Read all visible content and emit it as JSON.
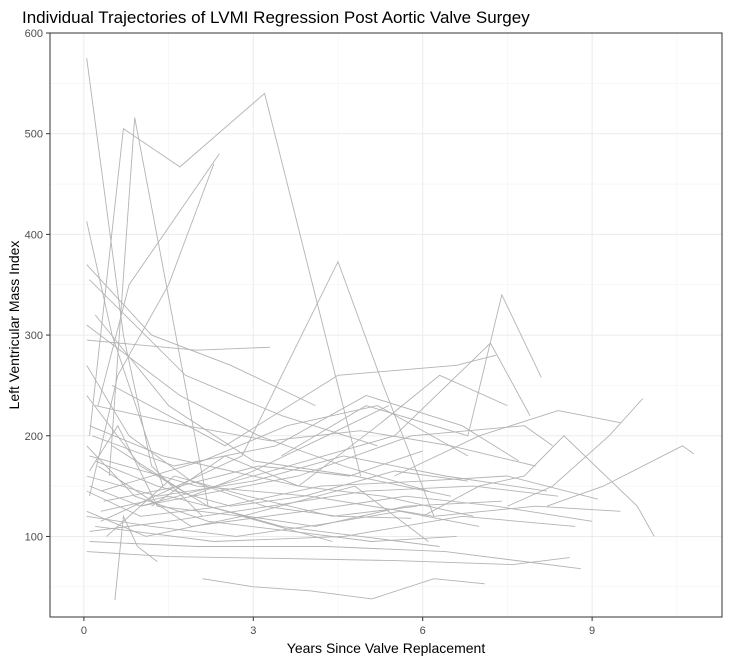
{
  "chart_data": {
    "type": "line",
    "title": "Individual Trajectories of LVMI Regression Post Aortic Valve Surgey",
    "xlabel": "Years Since Valve Replacement",
    "ylabel": "Left Ventricular Mass Index",
    "xlim": [
      -0.6,
      11.3
    ],
    "ylim": [
      20,
      600
    ],
    "xticks": [
      0,
      3,
      6,
      9
    ],
    "xtick_labels": [
      "0",
      "3",
      "6",
      "9"
    ],
    "yticks": [
      100,
      200,
      300,
      400,
      500,
      600
    ],
    "ytick_labels": [
      "100",
      "200",
      "300",
      "400",
      "500",
      "600"
    ],
    "grid": true,
    "legend": "none",
    "line_color": "#b3b3b3",
    "series": [
      {
        "x": [
          0.05,
          0.7,
          1.2,
          2.1
        ],
        "y": [
          575,
          300,
          170,
          120
        ]
      },
      {
        "x": [
          0.1,
          0.7,
          1.7,
          3.2,
          4.9
        ],
        "y": [
          200,
          505,
          467,
          540,
          160
        ]
      },
      {
        "x": [
          0.45,
          0.9,
          2.2,
          3.5
        ],
        "y": [
          160,
          516,
          130,
          110
        ]
      },
      {
        "x": [
          0.05,
          0.5,
          1.4
        ],
        "y": [
          413,
          300,
          150
        ]
      },
      {
        "x": [
          0.25,
          0.8,
          2.4
        ],
        "y": [
          230,
          350,
          480
        ]
      },
      {
        "x": [
          0.1,
          0.6,
          1.5,
          2.3
        ],
        "y": [
          140,
          260,
          350,
          470
        ]
      },
      {
        "x": [
          0.3,
          2.8,
          4.5,
          5.3,
          6.2
        ],
        "y": [
          115,
          180,
          373,
          250,
          120
        ]
      },
      {
        "x": [
          3.5,
          5.0,
          6.8,
          7.4,
          8.1
        ],
        "y": [
          180,
          230,
          200,
          340,
          258
        ]
      },
      {
        "x": [
          0.05,
          2.0,
          3.3
        ],
        "y": [
          295,
          285,
          288
        ]
      },
      {
        "x": [
          0.05,
          1.2,
          2.6,
          4.1
        ],
        "y": [
          370,
          300,
          270,
          230
        ]
      },
      {
        "x": [
          0.1,
          1.8,
          3.5,
          5.2
        ],
        "y": [
          355,
          260,
          220,
          190
        ]
      },
      {
        "x": [
          0.2,
          1.5,
          3.0,
          4.8,
          6.5
        ],
        "y": [
          320,
          230,
          175,
          160,
          140
        ]
      },
      {
        "x": [
          0.5,
          2.5,
          4.5,
          6.6,
          7.3
        ],
        "y": [
          250,
          190,
          260,
          270,
          280
        ]
      },
      {
        "x": [
          1.0,
          3.0,
          5.5,
          7.2,
          7.9
        ],
        "y": [
          130,
          160,
          200,
          292,
          220
        ]
      },
      {
        "x": [
          6.0,
          7.0,
          7.8,
          8.5,
          9.8,
          10.1
        ],
        "y": [
          120,
          150,
          160,
          200,
          130,
          100
        ]
      },
      {
        "x": [
          8.2,
          9.2,
          10.6,
          10.8
        ],
        "y": [
          130,
          150,
          190,
          182
        ]
      },
      {
        "x": [
          5.5,
          7.0,
          8.4,
          9.5
        ],
        "y": [
          160,
          200,
          225,
          213
        ]
      },
      {
        "x": [
          7.5,
          8.3,
          9.3,
          9.9
        ],
        "y": [
          130,
          150,
          200,
          237
        ]
      },
      {
        "x": [
          0.05,
          1.0,
          2.5,
          4.2,
          6.0,
          7.5,
          9.1
        ],
        "y": [
          145,
          120,
          130,
          150,
          155,
          160,
          137
        ]
      },
      {
        "x": [
          0.1,
          2.0,
          4.0,
          6.2,
          8.0,
          9.5
        ],
        "y": [
          180,
          150,
          140,
          120,
          130,
          125
        ]
      },
      {
        "x": [
          0.2,
          2.3,
          4.6,
          6.7,
          8.7
        ],
        "y": [
          110,
          95,
          100,
          120,
          110
        ]
      },
      {
        "x": [
          0.05,
          1.5,
          3.6,
          5.5,
          7.6,
          8.6
        ],
        "y": [
          85,
          80,
          78,
          76,
          72,
          79
        ]
      },
      {
        "x": [
          0.1,
          2.0,
          4.3,
          6.4,
          8.8
        ],
        "y": [
          95,
          90,
          90,
          85,
          68
        ]
      },
      {
        "x": [
          2.1,
          3.0,
          4.0,
          5.1,
          6.2,
          7.1
        ],
        "y": [
          58,
          50,
          46,
          38,
          58,
          53
        ]
      },
      {
        "x": [
          0.55,
          0.7,
          0.95,
          1.3
        ],
        "y": [
          37,
          120,
          90,
          75
        ]
      },
      {
        "x": [
          0.05,
          1.1,
          2.8,
          4.8,
          6.1
        ],
        "y": [
          125,
          100,
          120,
          150,
          95
        ]
      },
      {
        "x": [
          0.15,
          1.6,
          3.4,
          5.0,
          6.7,
          7.7
        ],
        "y": [
          200,
          170,
          190,
          240,
          210,
          175
        ]
      },
      {
        "x": [
          0.05,
          1.3,
          3.0,
          4.6,
          6.4,
          8.2
        ],
        "y": [
          160,
          140,
          155,
          180,
          160,
          145
        ]
      },
      {
        "x": [
          0.25,
          1.9,
          3.9,
          5.7,
          7.3,
          9.0
        ],
        "y": [
          170,
          110,
          125,
          140,
          130,
          115
        ]
      },
      {
        "x": [
          0.1,
          1.4,
          2.6,
          3.8,
          5.3,
          6.9
        ],
        "y": [
          210,
          180,
          165,
          150,
          140,
          120
        ]
      },
      {
        "x": [
          0.35,
          1.7,
          3.1,
          4.7,
          6.0
        ],
        "y": [
          135,
          150,
          170,
          160,
          185
        ]
      },
      {
        "x": [
          0.05,
          0.9,
          2.2,
          3.7,
          5.1,
          6.6
        ],
        "y": [
          190,
          140,
          115,
          105,
          95,
          100
        ]
      },
      {
        "x": [
          0.1,
          1.0,
          2.4,
          3.8,
          5.8,
          7.8,
          8.3
        ],
        "y": [
          150,
          130,
          145,
          160,
          200,
          210,
          190
        ]
      },
      {
        "x": [
          0.2,
          1.8,
          3.3,
          4.9,
          6.5,
          8.0
        ],
        "y": [
          230,
          210,
          195,
          205,
          190,
          170
        ]
      },
      {
        "x": [
          0.05,
          1.2,
          2.7,
          4.2,
          5.6,
          7.0
        ],
        "y": [
          120,
          110,
          100,
          112,
          125,
          110
        ]
      },
      {
        "x": [
          0.4,
          1.6,
          2.9,
          4.4,
          5.9
        ],
        "y": [
          100,
          160,
          140,
          120,
          130
        ]
      },
      {
        "x": [
          0.05,
          0.8,
          1.9,
          3.2,
          4.5,
          5.8
        ],
        "y": [
          270,
          200,
          155,
          130,
          120,
          118
        ]
      },
      {
        "x": [
          0.3,
          2.1,
          3.6,
          5.2,
          6.8
        ],
        "y": [
          145,
          175,
          210,
          230,
          180
        ]
      },
      {
        "x": [
          0.1,
          1.5,
          3.3,
          5.0,
          6.9,
          8.4
        ],
        "y": [
          105,
          115,
          130,
          145,
          150,
          140
        ]
      },
      {
        "x": [
          0.05,
          1.0,
          2.2,
          3.5,
          4.9,
          6.3
        ],
        "y": [
          240,
          170,
          130,
          110,
          100,
          90
        ]
      },
      {
        "x": [
          0.5,
          1.9,
          3.0,
          4.3,
          5.4
        ],
        "y": [
          190,
          140,
          165,
          200,
          230
        ]
      },
      {
        "x": [
          1.2,
          2.5,
          3.8,
          5.2,
          6.3,
          7.5
        ],
        "y": [
          130,
          180,
          150,
          210,
          260,
          230
        ]
      },
      {
        "x": [
          0.05,
          1.7,
          3.1,
          4.6,
          6.1
        ],
        "y": [
          310,
          240,
          200,
          170,
          145
        ]
      },
      {
        "x": [
          0.2,
          1.3,
          2.6,
          3.9,
          5.5,
          6.8
        ],
        "y": [
          175,
          150,
          130,
          140,
          165,
          155
        ]
      },
      {
        "x": [
          0.1,
          0.6,
          1.3,
          2.8,
          4.4
        ],
        "y": [
          165,
          210,
          130,
          120,
          95
        ]
      },
      {
        "x": [
          0.3,
          1.5,
          2.9,
          4.1,
          5.7,
          7.4
        ],
        "y": [
          125,
          140,
          120,
          110,
          130,
          135
        ]
      }
    ]
  }
}
